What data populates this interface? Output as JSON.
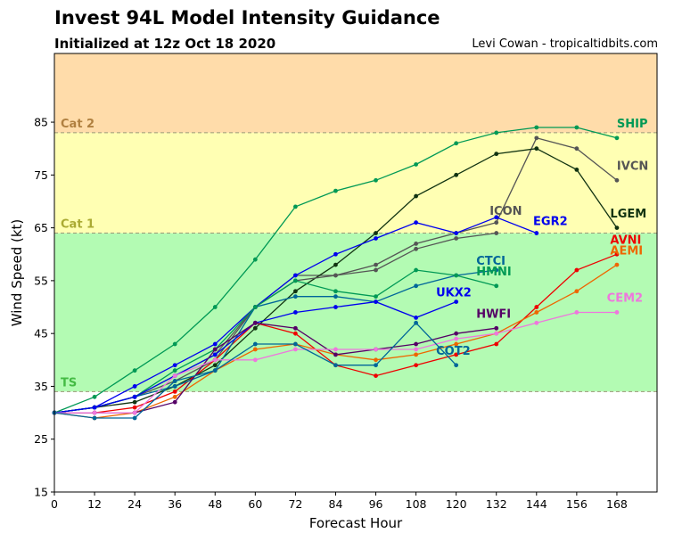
{
  "header": {
    "title": "Invest 94L Model Intensity Guidance",
    "subtitle": "Initialized at 12z Oct 18 2020",
    "credit": "Levi Cowan - tropicaltidbits.com"
  },
  "chart_data": {
    "type": "line",
    "title": "Invest 94L Model Intensity Guidance",
    "xlabel": "Forecast Hour",
    "ylabel": "Wind Speed (kt)",
    "xlim": [
      0,
      180
    ],
    "ylim": [
      15,
      98
    ],
    "xticks": [
      0,
      12,
      24,
      36,
      48,
      60,
      72,
      84,
      96,
      108,
      120,
      132,
      144,
      156,
      168
    ],
    "yticks": [
      15,
      25,
      35,
      45,
      55,
      65,
      75,
      85
    ],
    "grid": false,
    "bands": [
      {
        "name": "TS",
        "from": 34,
        "to": 64,
        "color": "#b3fbb3",
        "label_color": "#44bb44"
      },
      {
        "name": "Cat 1",
        "from": 64,
        "to": 83,
        "color": "#ffffb3",
        "label_color": "#aaaa33"
      },
      {
        "name": "Cat 2",
        "from": 83,
        "to": 98,
        "color": "#ffdcaa",
        "label_color": "#b08040"
      }
    ],
    "series": [
      {
        "name": "SHIP",
        "color": "#009955",
        "label_pos": [
          168,
          84
        ],
        "x": [
          0,
          12,
          24,
          36,
          48,
          60,
          72,
          84,
          96,
          108,
          120,
          132,
          144,
          156,
          168
        ],
        "values": [
          30,
          33,
          38,
          43,
          50,
          59,
          69,
          72,
          74,
          77,
          81,
          83,
          84,
          84,
          82
        ]
      },
      {
        "name": "IVCN",
        "color": "#555555",
        "label_pos": [
          168,
          76
        ],
        "x": [
          0,
          12,
          24,
          36,
          48,
          60,
          72,
          84,
          96,
          108,
          120,
          132,
          144,
          156,
          168
        ],
        "values": [
          30,
          31,
          33,
          37,
          41,
          50,
          56,
          56,
          58,
          62,
          64,
          66,
          82,
          80,
          74
        ]
      },
      {
        "name": "LGEM",
        "color": "#113311",
        "label_pos": [
          166,
          67
        ],
        "x": [
          0,
          12,
          24,
          36,
          48,
          60,
          72,
          84,
          96,
          108,
          120,
          132,
          144,
          156,
          168
        ],
        "values": [
          30,
          31,
          32,
          35,
          39,
          46,
          53,
          58,
          64,
          71,
          75,
          79,
          80,
          76,
          65
        ]
      },
      {
        "name": "ICON",
        "color": "#555555",
        "label_pos": [
          130,
          67.5
        ],
        "x": [
          0,
          12,
          24,
          36,
          48,
          60,
          72,
          84,
          96,
          108,
          120,
          132
        ],
        "values": [
          30,
          31,
          33,
          36,
          40,
          50,
          55,
          56,
          57,
          61,
          63,
          64
        ]
      },
      {
        "name": "EGR2",
        "color": "#0000ee",
        "label_pos": [
          143,
          65.5
        ],
        "x": [
          0,
          12,
          24,
          36,
          48,
          60,
          72,
          84,
          96,
          108,
          120,
          132,
          144
        ],
        "values": [
          30,
          31,
          35,
          39,
          43,
          50,
          56,
          60,
          63,
          66,
          64,
          67,
          64
        ]
      },
      {
        "name": "AVNI",
        "color": "#ee0000",
        "label_pos": [
          166,
          62
        ],
        "x": [
          0,
          12,
          24,
          36,
          48,
          60,
          72,
          84,
          96,
          108,
          120,
          132,
          144,
          156,
          168
        ],
        "values": [
          30,
          30,
          31,
          34,
          40,
          47,
          45,
          39,
          37,
          39,
          41,
          43,
          50,
          57,
          60
        ]
      },
      {
        "name": "AEMI",
        "color": "#ee6600",
        "label_pos": [
          166,
          60
        ],
        "x": [
          0,
          12,
          24,
          36,
          48,
          60,
          72,
          84,
          96,
          108,
          120,
          132,
          144,
          156,
          168
        ],
        "values": [
          30,
          29,
          30,
          33,
          38,
          42,
          43,
          41,
          40,
          41,
          43,
          45,
          49,
          53,
          58
        ]
      },
      {
        "name": "CTCI",
        "color": "#006699",
        "label_pos": [
          126,
          58
        ],
        "x": [
          0,
          12,
          24,
          36,
          48,
          60,
          72,
          84,
          96,
          108,
          120,
          132
        ],
        "values": [
          30,
          31,
          33,
          35,
          38,
          50,
          52,
          52,
          51,
          54,
          56,
          57
        ]
      },
      {
        "name": "HMNI",
        "color": "#009955",
        "label_pos": [
          126,
          56
        ],
        "x": [
          0,
          12,
          24,
          36,
          48,
          60,
          72,
          84,
          96,
          108,
          120,
          132
        ],
        "values": [
          30,
          31,
          33,
          38,
          42,
          50,
          55,
          53,
          52,
          57,
          56,
          54
        ]
      },
      {
        "name": "UKX2",
        "color": "#0000ee",
        "label_pos": [
          114,
          52
        ],
        "x": [
          0,
          12,
          24,
          36,
          48,
          60,
          72,
          84,
          96,
          108,
          120
        ],
        "values": [
          30,
          31,
          33,
          37,
          41,
          47,
          49,
          50,
          51,
          48,
          51
        ]
      },
      {
        "name": "HWFI",
        "color": "#550066",
        "label_pos": [
          126,
          48
        ],
        "x": [
          0,
          12,
          24,
          36,
          48,
          60,
          72,
          84,
          96,
          108,
          120,
          132
        ],
        "values": [
          30,
          30,
          30,
          32,
          42,
          47,
          46,
          41,
          42,
          43,
          45,
          46
        ]
      },
      {
        "name": "CEM2",
        "color": "#ee77dd",
        "label_pos": [
          165,
          51
        ],
        "x": [
          0,
          12,
          24,
          36,
          48,
          60,
          72,
          84,
          96,
          108,
          120,
          132,
          144,
          156,
          168
        ],
        "values": [
          30,
          30,
          30,
          37,
          40,
          40,
          42,
          42,
          42,
          42,
          44,
          45,
          47,
          49,
          49
        ]
      },
      {
        "name": "COT2",
        "color": "#006699",
        "label_pos": [
          114,
          41
        ],
        "x": [
          0,
          12,
          24,
          36,
          48,
          60,
          72,
          84,
          96,
          108,
          120
        ],
        "values": [
          30,
          29,
          29,
          36,
          38,
          43,
          43,
          39,
          39,
          47,
          39
        ]
      }
    ]
  }
}
